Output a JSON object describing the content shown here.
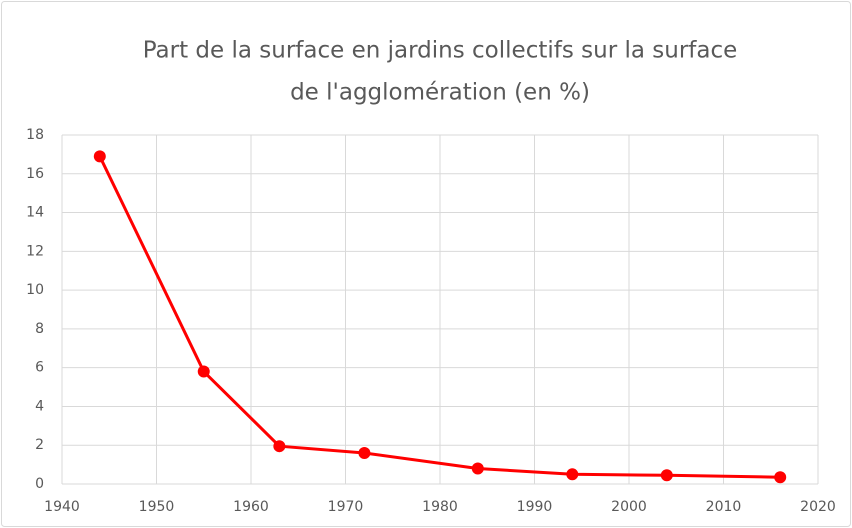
{
  "chart_data": {
    "type": "line",
    "title": [
      "Part de la surface en jardins collectifs sur la surface",
      "de l'agglomération (en %)"
    ],
    "x": [
      1944,
      1955,
      1963,
      1972,
      1984,
      1994,
      2004,
      2016
    ],
    "series": [
      {
        "name": "Part",
        "color": "#ff0000",
        "values": [
          16.9,
          5.8,
          1.95,
          1.6,
          0.8,
          0.5,
          0.45,
          0.35
        ]
      }
    ],
    "xlim": [
      1940,
      2020
    ],
    "xticks": [
      1940,
      1950,
      1960,
      1970,
      1980,
      1990,
      2000,
      2010,
      2020
    ],
    "ylim": [
      0,
      18
    ],
    "yticks": [
      0,
      2,
      4,
      6,
      8,
      10,
      12,
      14,
      16,
      18
    ],
    "grid": true
  }
}
